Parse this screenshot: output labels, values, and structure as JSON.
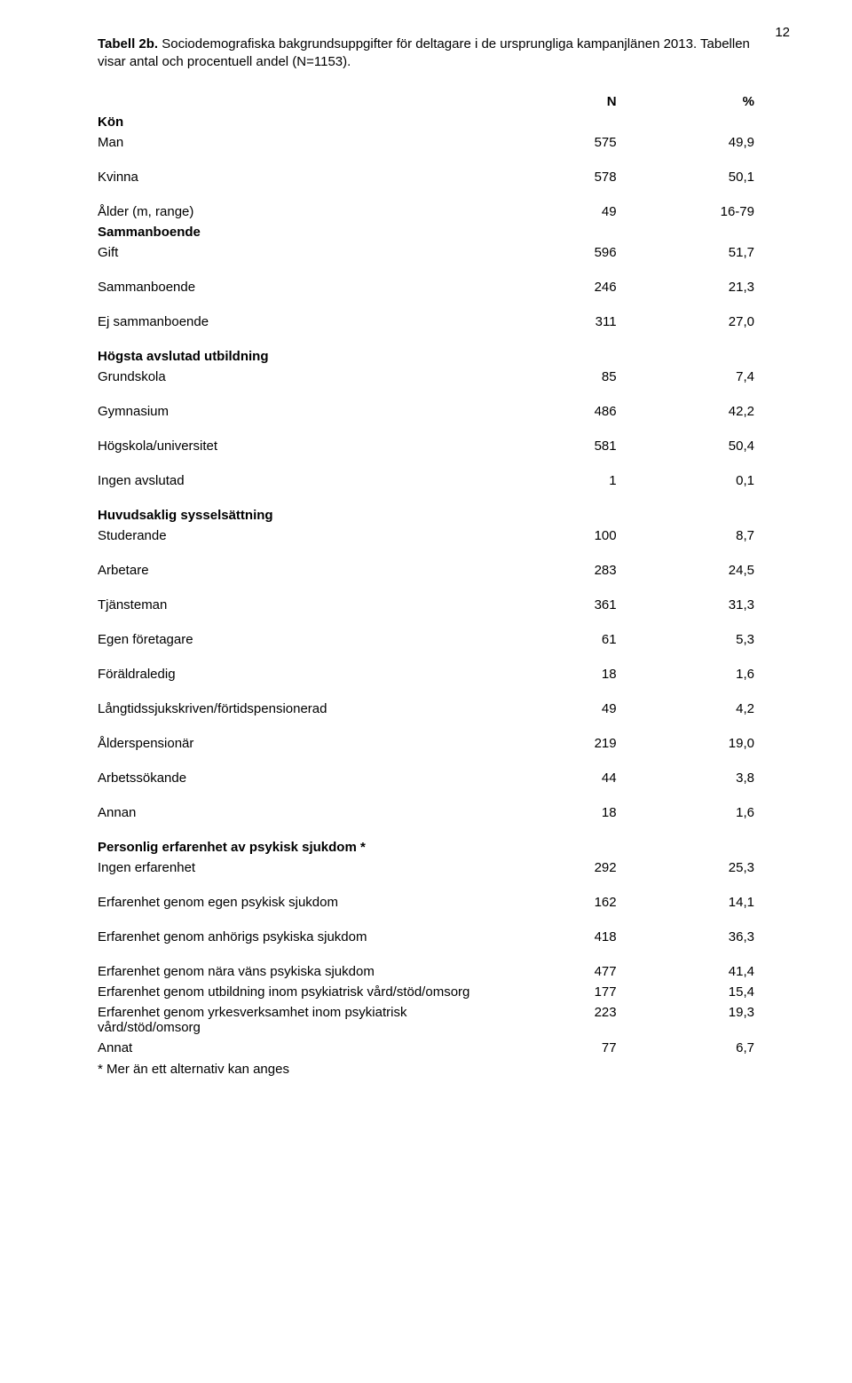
{
  "page_number": "12",
  "caption_bold": "Tabell 2b.",
  "caption_rest": " Sociodemografiska bakgrundsuppgifter för deltagare i de ursprungliga kampanjlänen 2013. Tabellen visar antal och procentuell andel (N=1153).",
  "header_n": "N",
  "header_pct": "%",
  "sections": {
    "kon": {
      "title": "Kön",
      "rows": [
        {
          "label": "Man",
          "n": "575",
          "p": "49,9"
        },
        {
          "label": "Kvinna",
          "n": "578",
          "p": "50,1"
        }
      ]
    },
    "alder": {
      "rows": [
        {
          "label": "Ålder (m, range)",
          "n": "49",
          "p": "16-79"
        }
      ]
    },
    "sammanboende": {
      "title": "Sammanboende",
      "rows": [
        {
          "label": "Gift",
          "n": "596",
          "p": "51,7"
        },
        {
          "label": "Sammanboende",
          "n": "246",
          "p": "21,3"
        },
        {
          "label": "Ej sammanboende",
          "n": "311",
          "p": "27,0"
        }
      ]
    },
    "utbildning": {
      "title": "Högsta avslutad utbildning",
      "rows": [
        {
          "label": "Grundskola",
          "n": "85",
          "p": "7,4"
        },
        {
          "label": "Gymnasium",
          "n": "486",
          "p": "42,2"
        },
        {
          "label": "Högskola/universitet",
          "n": "581",
          "p": "50,4"
        },
        {
          "label": "Ingen avslutad",
          "n": "1",
          "p": "0,1"
        }
      ]
    },
    "syssel": {
      "title": "Huvudsaklig sysselsättning",
      "rows": [
        {
          "label": "Studerande",
          "n": "100",
          "p": "8,7"
        },
        {
          "label": "Arbetare",
          "n": "283",
          "p": "24,5"
        },
        {
          "label": "Tjänsteman",
          "n": "361",
          "p": "31,3"
        },
        {
          "label": "Egen företagare",
          "n": "61",
          "p": "5,3"
        },
        {
          "label": "Föräldraledig",
          "n": "18",
          "p": "1,6"
        },
        {
          "label": "Långtidssjukskriven/förtidspensionerad",
          "n": "49",
          "p": "4,2"
        },
        {
          "label": "Ålderspensionär",
          "n": "219",
          "p": "19,0"
        },
        {
          "label": "Arbetssökande",
          "n": "44",
          "p": "3,8"
        },
        {
          "label": "Annan",
          "n": "18",
          "p": "1,6"
        }
      ]
    },
    "erfarenhet": {
      "title": "Personlig erfarenhet av psykisk sjukdom *",
      "rows": [
        {
          "label": "Ingen erfarenhet",
          "n": "292",
          "p": "25,3"
        },
        {
          "label": "Erfarenhet genom egen psykisk sjukdom",
          "n": "162",
          "p": "14,1"
        },
        {
          "label": "Erfarenhet genom anhörigs psykiska sjukdom",
          "n": "418",
          "p": "36,3"
        },
        {
          "label": "Erfarenhet genom nära väns psykiska sjukdom",
          "n": "477",
          "p": "41,4"
        },
        {
          "label": "Erfarenhet genom utbildning inom psykiatrisk vård/stöd/omsorg",
          "n": "177",
          "p": "15,4"
        },
        {
          "label": "Erfarenhet genom yrkesverksamhet inom psykiatrisk vård/stöd/omsorg",
          "n": "223",
          "p": "19,3"
        },
        {
          "label": "Annat",
          "n": "77",
          "p": "6,7"
        }
      ]
    }
  },
  "footnote": "* Mer än ett alternativ kan anges"
}
